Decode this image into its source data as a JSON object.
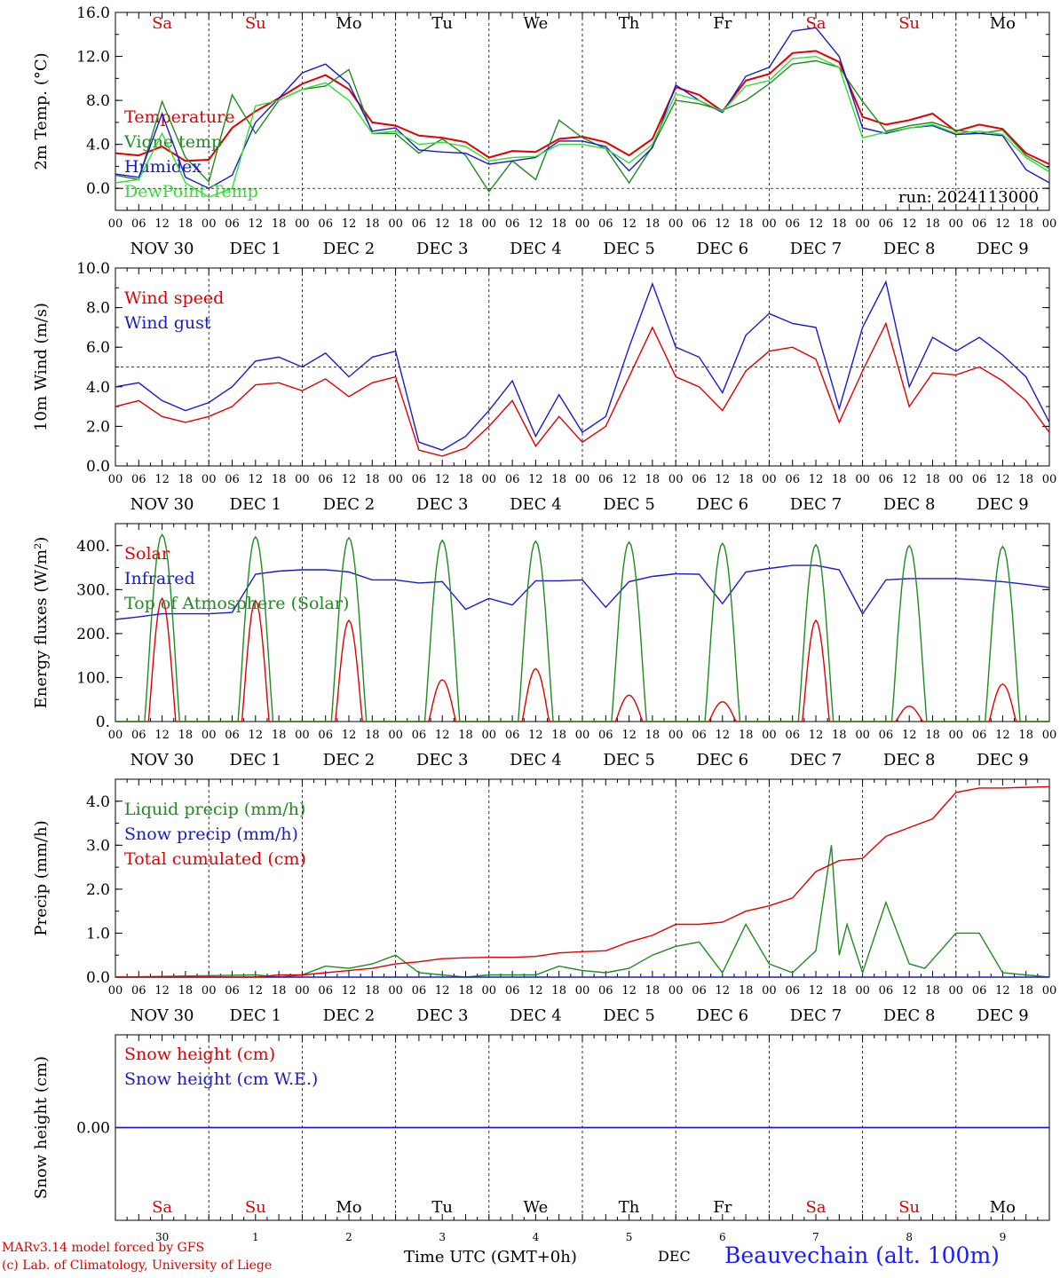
{
  "meta": {
    "run_label": "run: 2024113000",
    "model_line1": "MARv3.14 model forced by GFS",
    "model_line2": "(c) Lab. of Climatology, University of Liege",
    "time_axis_label": "Time UTC (GMT+0h)",
    "month_label": "DEC",
    "station": "Beauvechain (alt. 100m)"
  },
  "colors": {
    "red": "#e00000",
    "green": "#1f8a1f",
    "blue": "#1a1acc",
    "lightgreen": "#33dd33",
    "weekend": "#e00000",
    "weekday": "#000000",
    "station": "#1a1aff"
  },
  "days": {
    "weekday_labels": [
      "Sa",
      "Su",
      "Mo",
      "Tu",
      "We",
      "Th",
      "Fr",
      "Sa",
      "Su",
      "Mo"
    ],
    "weekend_flags": [
      true,
      true,
      false,
      false,
      false,
      false,
      false,
      true,
      true,
      false
    ],
    "date_labels": [
      "NOV 30",
      "DEC  1",
      "DEC  2",
      "DEC  3",
      "DEC  4",
      "DEC  5",
      "DEC  6",
      "DEC  7",
      "DEC  8",
      "DEC  9"
    ],
    "date_numbers": [
      "30",
      "1",
      "2",
      "3",
      "4",
      "5",
      "6",
      "7",
      "8",
      "9"
    ],
    "hour_ticks": [
      "00",
      "06",
      "12",
      "18"
    ],
    "final_tick": "00"
  },
  "chart_data": [
    {
      "type": "line",
      "id": "temp",
      "ylabel": "2m Temp. (°C)",
      "ylim": [
        -2,
        16
      ],
      "yticks": [
        "0.0",
        "4.0",
        "8.0",
        "12.0",
        "16.0"
      ],
      "ytick_values": [
        0,
        4,
        8,
        12,
        16
      ],
      "ref_line": 0,
      "x_unit": "hours since NOV 30 00 UTC",
      "series": [
        {
          "name": "Temperature",
          "color": "red",
          "x": [
            0,
            6,
            12,
            18,
            24,
            30,
            36,
            42,
            48,
            54,
            60,
            66,
            72,
            78,
            84,
            90,
            96,
            102,
            108,
            114,
            120,
            126,
            132,
            138,
            144,
            150,
            156,
            162,
            168,
            174,
            180,
            186,
            192,
            198,
            204,
            210,
            216,
            222,
            228,
            234,
            240
          ],
          "y": [
            3.2,
            3.0,
            3.8,
            2.5,
            2.6,
            5.5,
            7.0,
            8.2,
            9.5,
            10.3,
            9.0,
            6.0,
            5.7,
            4.8,
            4.6,
            4.2,
            2.8,
            3.4,
            3.3,
            4.5,
            4.7,
            4.2,
            3.0,
            4.5,
            9.2,
            8.5,
            7.0,
            9.8,
            10.4,
            12.3,
            12.5,
            11.5,
            6.5,
            5.8,
            6.2,
            6.8,
            5.2,
            5.8,
            5.4,
            3.2,
            2.2
          ]
        },
        {
          "name": "Vigne temp",
          "color": "green",
          "x": [
            0,
            6,
            12,
            18,
            24,
            30,
            36,
            42,
            48,
            54,
            60,
            66,
            72,
            78,
            84,
            90,
            96,
            102,
            108,
            114,
            120,
            126,
            132,
            138,
            144,
            150,
            156,
            162,
            168,
            174,
            180,
            186,
            192,
            198,
            204,
            210,
            216,
            222,
            228,
            234,
            240
          ],
          "y": [
            1.2,
            0.8,
            7.9,
            2.8,
            0.6,
            8.5,
            5.0,
            8.0,
            9.0,
            9.3,
            10.8,
            5.0,
            5.0,
            3.2,
            4.5,
            3.0,
            -0.3,
            2.5,
            0.8,
            6.2,
            4.6,
            3.6,
            0.5,
            3.8,
            8.0,
            7.7,
            7.1,
            8.0,
            9.5,
            11.3,
            11.6,
            11.0,
            7.9,
            5.2,
            5.7,
            6.0,
            5.3,
            5.0,
            5.3,
            3.0,
            1.8
          ]
        },
        {
          "name": "Humidex",
          "color": "blue",
          "x": [
            0,
            6,
            12,
            18,
            24,
            30,
            36,
            42,
            48,
            54,
            60,
            66,
            72,
            78,
            84,
            90,
            96,
            102,
            108,
            114,
            120,
            126,
            132,
            138,
            144,
            150,
            156,
            162,
            168,
            174,
            180,
            186,
            192,
            198,
            204,
            210,
            216,
            222,
            228,
            234,
            240
          ],
          "y": [
            1.3,
            1.0,
            6.8,
            1.0,
            0.0,
            1.2,
            6.0,
            8.2,
            10.5,
            11.3,
            9.5,
            5.2,
            5.5,
            3.5,
            3.3,
            3.2,
            2.2,
            2.5,
            2.8,
            4.3,
            4.3,
            3.8,
            1.6,
            3.7,
            9.4,
            8.0,
            6.9,
            10.2,
            11.0,
            14.3,
            14.6,
            12.0,
            5.5,
            5.0,
            5.5,
            5.7,
            4.9,
            5.0,
            4.8,
            1.7,
            0.5
          ]
        },
        {
          "name": "DewPoint Temp",
          "color": "lightgreen",
          "x": [
            0,
            6,
            12,
            18,
            24,
            30,
            36,
            42,
            48,
            54,
            60,
            66,
            72,
            78,
            84,
            90,
            96,
            102,
            108,
            114,
            120,
            126,
            132,
            138,
            144,
            150,
            156,
            162,
            168,
            174,
            180,
            186,
            192,
            198,
            204,
            210,
            216,
            222,
            228,
            234,
            240
          ],
          "y": [
            0.5,
            0.8,
            5.0,
            0.5,
            -0.8,
            0.0,
            7.5,
            8.0,
            9.0,
            9.6,
            8.0,
            5.0,
            5.2,
            4.0,
            4.2,
            3.8,
            2.5,
            2.8,
            2.9,
            4.0,
            4.0,
            3.6,
            2.3,
            4.0,
            8.6,
            8.0,
            7.0,
            9.3,
            9.8,
            11.8,
            12.0,
            11.0,
            4.6,
            5.1,
            5.5,
            5.8,
            5.0,
            5.2,
            4.9,
            2.8,
            1.5
          ]
        }
      ]
    },
    {
      "type": "line",
      "id": "wind",
      "ylabel": "10m Wind (m/s)",
      "ylim": [
        0,
        10
      ],
      "yticks": [
        "0.0",
        "2.0",
        "4.0",
        "6.0",
        "8.0",
        "10.0"
      ],
      "ytick_values": [
        0,
        2,
        4,
        6,
        8,
        10
      ],
      "ref_line": 5,
      "x_unit": "hours since NOV 30 00 UTC",
      "series": [
        {
          "name": "Wind speed",
          "color": "red",
          "x": [
            0,
            6,
            12,
            18,
            24,
            30,
            36,
            42,
            48,
            54,
            60,
            66,
            72,
            78,
            84,
            90,
            96,
            102,
            108,
            114,
            120,
            126,
            132,
            138,
            144,
            150,
            156,
            162,
            168,
            174,
            180,
            186,
            192,
            198,
            204,
            210,
            216,
            222,
            228,
            234,
            240
          ],
          "y": [
            3.0,
            3.3,
            2.5,
            2.2,
            2.5,
            3.0,
            4.1,
            4.2,
            3.8,
            4.4,
            3.5,
            4.2,
            4.5,
            0.8,
            0.5,
            0.9,
            2.0,
            3.3,
            1.0,
            2.5,
            1.2,
            2.0,
            4.5,
            7.0,
            4.5,
            4.0,
            2.8,
            4.8,
            5.8,
            6.0,
            5.4,
            2.2,
            4.8,
            7.2,
            3.0,
            4.7,
            4.6,
            5.0,
            4.3,
            3.3,
            1.7
          ]
        },
        {
          "name": "Wind gust",
          "color": "blue",
          "x": [
            0,
            6,
            12,
            18,
            24,
            30,
            36,
            42,
            48,
            54,
            60,
            66,
            72,
            78,
            84,
            90,
            96,
            102,
            108,
            114,
            120,
            126,
            132,
            138,
            144,
            150,
            156,
            162,
            168,
            174,
            180,
            186,
            192,
            198,
            204,
            210,
            216,
            222,
            228,
            234,
            240
          ],
          "y": [
            4.0,
            4.2,
            3.3,
            2.8,
            3.2,
            4.0,
            5.3,
            5.5,
            5.0,
            5.7,
            4.5,
            5.5,
            5.8,
            1.2,
            0.8,
            1.5,
            2.8,
            4.3,
            1.5,
            3.6,
            1.7,
            2.5,
            6.0,
            9.2,
            6.0,
            5.5,
            3.7,
            6.6,
            7.7,
            7.2,
            7.0,
            2.9,
            7.0,
            9.3,
            4.0,
            6.5,
            5.8,
            6.5,
            5.6,
            4.5,
            2.2
          ]
        }
      ]
    },
    {
      "type": "line",
      "id": "energy",
      "ylabel": "Energy fluxes (W/m²)",
      "ylim": [
        0,
        450
      ],
      "yticks": [
        "0.",
        "100.",
        "200.",
        "300.",
        "400."
      ],
      "ytick_values": [
        0,
        100,
        200,
        300,
        400
      ],
      "x_unit": "hours since NOV 30 00 UTC",
      "series": [
        {
          "name": "Solar",
          "color": "red",
          "day_peaks_wm2": [
            280,
            275,
            230,
            95,
            120,
            60,
            45,
            230,
            35,
            85
          ],
          "note": "zero at night; daily bell between ~08 and ~16 UTC"
        },
        {
          "name": "Infrared",
          "color": "blue",
          "x": [
            0,
            6,
            12,
            18,
            24,
            30,
            36,
            42,
            48,
            54,
            60,
            66,
            72,
            78,
            84,
            90,
            96,
            102,
            108,
            114,
            120,
            126,
            132,
            138,
            144,
            150,
            156,
            162,
            168,
            174,
            180,
            186,
            192,
            198,
            204,
            210,
            216,
            222,
            228,
            234,
            240
          ],
          "y": [
            232,
            238,
            245,
            245,
            245,
            248,
            335,
            342,
            345,
            345,
            340,
            322,
            322,
            315,
            318,
            255,
            280,
            265,
            320,
            320,
            322,
            260,
            318,
            330,
            336,
            335,
            268,
            340,
            348,
            355,
            355,
            345,
            245,
            322,
            325,
            325,
            325,
            322,
            318,
            312,
            305
          ]
        },
        {
          "name": "Top of Atmosphere (Solar)",
          "color": "green",
          "day_peaks_wm2": [
            425,
            420,
            418,
            412,
            410,
            408,
            405,
            402,
            400,
            398
          ],
          "note": "zero at night; daily bell between ~07 and ~17 UTC"
        }
      ]
    },
    {
      "type": "line",
      "id": "precip",
      "ylabel": "Precip (mm/h)",
      "ylim": [
        0,
        4.5
      ],
      "yticks": [
        "0.0",
        "1.0",
        "2.0",
        "3.0",
        "4.0"
      ],
      "ytick_values": [
        0,
        1,
        2,
        3,
        4
      ],
      "x_unit": "hours since NOV 30 00 UTC",
      "series": [
        {
          "name": "Liquid precip (mm/h)",
          "color": "green",
          "x": [
            0,
            36,
            42,
            48,
            54,
            60,
            66,
            72,
            78,
            84,
            90,
            96,
            108,
            114,
            120,
            126,
            132,
            138,
            144,
            150,
            156,
            162,
            168,
            174,
            180,
            184,
            186,
            188,
            192,
            198,
            204,
            208,
            212,
            216,
            222,
            228,
            240
          ],
          "y": [
            0,
            0.05,
            0,
            0.05,
            0.25,
            0.2,
            0.3,
            0.5,
            0.1,
            0.05,
            0,
            0.05,
            0.05,
            0.25,
            0.15,
            0.1,
            0.2,
            0.5,
            0.7,
            0.8,
            0.1,
            1.2,
            0.3,
            0.1,
            0.6,
            3.0,
            0.5,
            1.2,
            0.1,
            1.7,
            0.3,
            0.2,
            0.6,
            1.0,
            1.0,
            0.1,
            0
          ]
        },
        {
          "name": "Snow precip (mm/h)",
          "color": "blue",
          "x": [
            0,
            240
          ],
          "y": [
            0,
            0
          ]
        },
        {
          "name": "Total cumulated (cm)",
          "color": "red",
          "x": [
            0,
            36,
            42,
            48,
            54,
            60,
            66,
            72,
            78,
            84,
            90,
            96,
            102,
            108,
            114,
            120,
            126,
            132,
            138,
            144,
            150,
            156,
            162,
            168,
            174,
            180,
            186,
            192,
            198,
            204,
            210,
            216,
            222,
            228,
            240
          ],
          "y": [
            0,
            0,
            0.05,
            0.05,
            0.1,
            0.15,
            0.2,
            0.3,
            0.35,
            0.42,
            0.44,
            0.45,
            0.45,
            0.47,
            0.55,
            0.58,
            0.6,
            0.8,
            0.95,
            1.2,
            1.2,
            1.25,
            1.5,
            1.62,
            1.8,
            2.4,
            2.65,
            2.7,
            3.2,
            3.4,
            3.6,
            4.2,
            4.3,
            4.3,
            4.33
          ]
        }
      ]
    },
    {
      "type": "line",
      "id": "snow",
      "ylabel": "Snow height (cm)",
      "ylim": [
        -1,
        1
      ],
      "yticks": [
        "0.00"
      ],
      "ytick_values": [
        0
      ],
      "x_unit": "hours since NOV 30 00 UTC",
      "series": [
        {
          "name": "Snow height (cm)",
          "color": "red",
          "x": [
            0,
            240
          ],
          "y": [
            0,
            0
          ]
        },
        {
          "name": "Snow height (cm W.E.)",
          "color": "blue",
          "x": [
            0,
            240
          ],
          "y": [
            0,
            0
          ]
        }
      ]
    }
  ]
}
